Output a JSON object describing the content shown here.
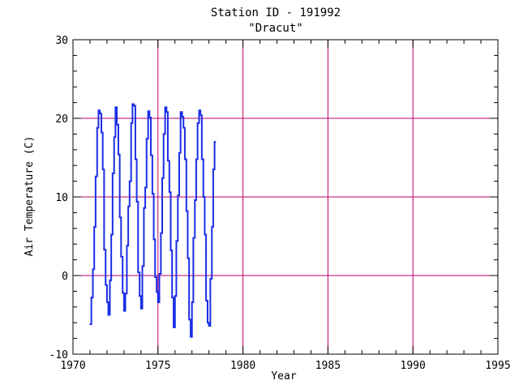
{
  "chart_data": {
    "type": "line",
    "title": "Station ID - 191992",
    "subtitle": "\"Dracut\"",
    "xlabel": "Year",
    "ylabel": "Air Temperature (C)",
    "xlim": [
      1970,
      1995
    ],
    "ylim": [
      -10,
      30
    ],
    "x_ticks": [
      1970,
      1975,
      1980,
      1985,
      1990,
      1995
    ],
    "y_ticks": [
      -10,
      0,
      10,
      20,
      30
    ],
    "grid_x": [
      1975,
      1980,
      1985,
      1990
    ],
    "grid_y": [
      0,
      10,
      20
    ],
    "grid_color": "#c0006a",
    "line_color": "#1a2ee6",
    "step": true,
    "series": [
      {
        "values": [
          [
            1971.0,
            -6.2
          ],
          [
            1971.08,
            -2.8
          ],
          [
            1971.17,
            0.8
          ],
          [
            1971.25,
            6.2
          ],
          [
            1971.33,
            12.6
          ],
          [
            1971.42,
            18.8
          ],
          [
            1971.5,
            21.0
          ],
          [
            1971.58,
            20.6
          ],
          [
            1971.67,
            18.2
          ],
          [
            1971.75,
            13.5
          ],
          [
            1971.83,
            3.3
          ],
          [
            1971.92,
            -1.2
          ],
          [
            1972.0,
            -3.4
          ],
          [
            1972.08,
            -5.0
          ],
          [
            1972.17,
            -0.6
          ],
          [
            1972.25,
            5.2
          ],
          [
            1972.33,
            13.0
          ],
          [
            1972.42,
            17.6
          ],
          [
            1972.5,
            21.4
          ],
          [
            1972.58,
            19.2
          ],
          [
            1972.67,
            15.4
          ],
          [
            1972.75,
            7.4
          ],
          [
            1972.83,
            2.4
          ],
          [
            1972.92,
            -2.2
          ],
          [
            1973.0,
            -4.5
          ],
          [
            1973.08,
            -2.3
          ],
          [
            1973.17,
            3.8
          ],
          [
            1973.25,
            8.8
          ],
          [
            1973.33,
            12.0
          ],
          [
            1973.42,
            19.4
          ],
          [
            1973.5,
            21.8
          ],
          [
            1973.58,
            21.6
          ],
          [
            1973.67,
            14.8
          ],
          [
            1973.75,
            9.4
          ],
          [
            1973.83,
            0.4
          ],
          [
            1973.92,
            -2.6
          ],
          [
            1974.0,
            -4.2
          ],
          [
            1974.08,
            1.2
          ],
          [
            1974.17,
            8.6
          ],
          [
            1974.25,
            11.2
          ],
          [
            1974.33,
            17.4
          ],
          [
            1974.42,
            20.9
          ],
          [
            1974.5,
            20.1
          ],
          [
            1974.58,
            15.3
          ],
          [
            1974.67,
            10.4
          ],
          [
            1974.75,
            4.6
          ],
          [
            1974.83,
            -0.2
          ],
          [
            1974.92,
            -2.1
          ],
          [
            1975.0,
            -3.4
          ],
          [
            1975.08,
            0.2
          ],
          [
            1975.17,
            5.4
          ],
          [
            1975.25,
            12.4
          ],
          [
            1975.33,
            18.0
          ],
          [
            1975.42,
            21.4
          ],
          [
            1975.5,
            20.8
          ],
          [
            1975.58,
            14.6
          ],
          [
            1975.67,
            10.6
          ],
          [
            1975.75,
            3.2
          ],
          [
            1975.83,
            -2.8
          ],
          [
            1975.92,
            -6.6
          ],
          [
            1976.0,
            -2.6
          ],
          [
            1976.08,
            4.4
          ],
          [
            1976.17,
            10.2
          ],
          [
            1976.25,
            15.6
          ],
          [
            1976.33,
            20.8
          ],
          [
            1976.42,
            20.2
          ],
          [
            1976.5,
            18.8
          ],
          [
            1976.58,
            14.8
          ],
          [
            1976.67,
            8.2
          ],
          [
            1976.75,
            2.2
          ],
          [
            1976.83,
            -5.6
          ],
          [
            1976.92,
            -7.8
          ],
          [
            1977.0,
            -3.4
          ],
          [
            1977.08,
            4.8
          ],
          [
            1977.17,
            9.6
          ],
          [
            1977.25,
            14.8
          ],
          [
            1977.33,
            19.4
          ],
          [
            1977.42,
            21.0
          ],
          [
            1977.5,
            20.4
          ],
          [
            1977.58,
            14.8
          ],
          [
            1977.67,
            10.0
          ],
          [
            1977.75,
            5.2
          ],
          [
            1977.83,
            -3.2
          ],
          [
            1977.92,
            -6.0
          ],
          [
            1978.0,
            -6.4
          ],
          [
            1978.08,
            -0.4
          ],
          [
            1978.17,
            6.2
          ],
          [
            1978.25,
            13.5
          ],
          [
            1978.33,
            17.0
          ]
        ]
      }
    ]
  }
}
